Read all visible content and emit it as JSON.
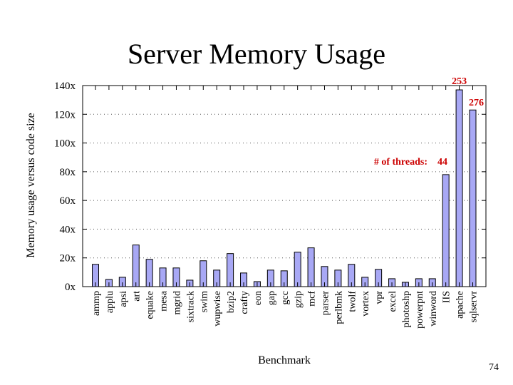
{
  "slide": {
    "title": "Server Memory Usage",
    "page_number": "74"
  },
  "chart_data": {
    "type": "bar",
    "title": "Server Memory Usage",
    "xlabel": "Benchmark",
    "ylabel": "Memory usage versus code size",
    "ylim": [
      0,
      140
    ],
    "yticks": [
      0,
      20,
      40,
      60,
      80,
      100,
      120,
      140
    ],
    "ytick_labels": [
      "0x",
      "20x",
      "40x",
      "60x",
      "80x",
      "100x",
      "120x",
      "140x"
    ],
    "grid": "horizontal dotted",
    "bar_color": "#a8a8f5",
    "annotation_color": "#cc0000",
    "categories": [
      "ammp",
      "applu",
      "apsi",
      "art",
      "equake",
      "mesa",
      "mgrid",
      "sixtrack",
      "swim",
      "wupwise",
      "bzip2",
      "crafty",
      "eon",
      "gap",
      "gcc",
      "gzip",
      "mcf",
      "parser",
      "perlbmk",
      "twolf",
      "vortex",
      "vpr",
      "excel",
      "photoshp",
      "powerpnt",
      "winword",
      "IIS",
      "apache",
      "sqlservr"
    ],
    "values": [
      15.5,
      5,
      6.5,
      29,
      19,
      13,
      13,
      4.5,
      18,
      11.5,
      23,
      9.5,
      3.5,
      11.5,
      11,
      24,
      27,
      14,
      11.5,
      15.5,
      6.5,
      12,
      5.5,
      3,
      5.5,
      5.5,
      78,
      137,
      123
    ],
    "annotations": [
      {
        "text": "# of threads:",
        "category": "IIS",
        "value": 44,
        "label": "44"
      },
      {
        "category": "apache",
        "value": 253,
        "label": "253"
      },
      {
        "category": "sqlservr",
        "value": 276,
        "label": "276"
      }
    ]
  }
}
